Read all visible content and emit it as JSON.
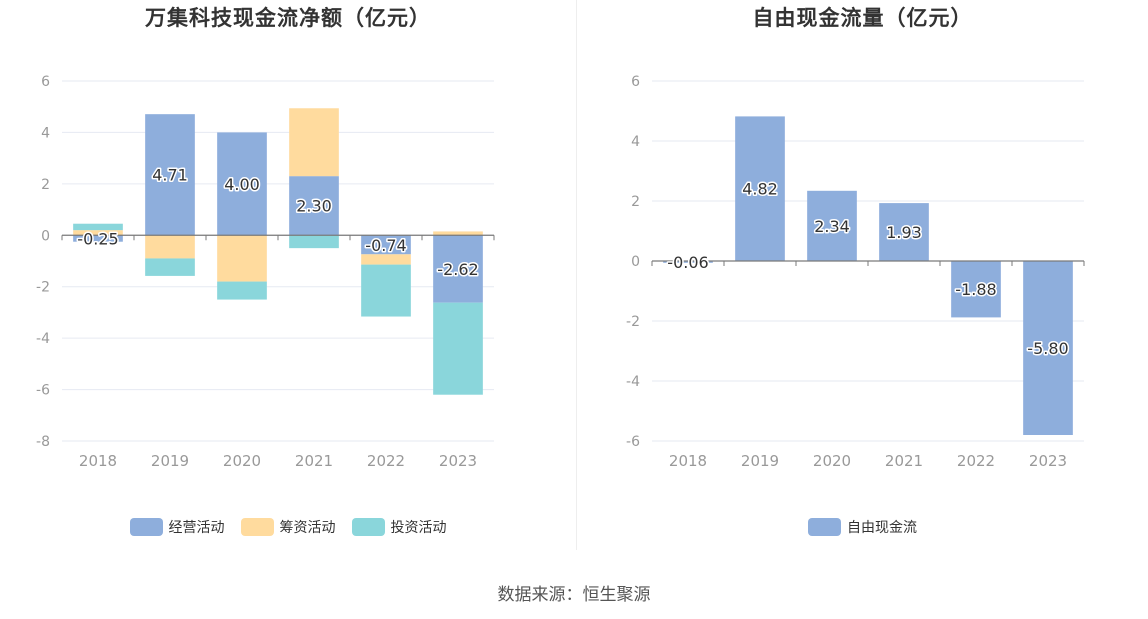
{
  "source_text": "数据来源：恒生聚源",
  "chart_data": [
    {
      "type": "bar",
      "stacked": true,
      "title": "万集科技现金流净额（亿元）",
      "categories": [
        "2018",
        "2019",
        "2020",
        "2021",
        "2022",
        "2023"
      ],
      "series": [
        {
          "name": "经营活动",
          "color": "#8eaedc",
          "values": [
            -0.25,
            4.71,
            4.0,
            2.3,
            -0.74,
            -2.62
          ]
        },
        {
          "name": "筹资活动",
          "color": "#ffdb9e",
          "values": [
            0.2,
            -0.9,
            -1.8,
            2.64,
            -0.4,
            0.15
          ]
        },
        {
          "name": "投资活动",
          "color": "#8ad6db",
          "values": [
            0.25,
            -0.68,
            -0.7,
            -0.5,
            -2.02,
            -3.58
          ]
        }
      ],
      "data_labels": [
        "-0.25",
        "4.71",
        "4.00",
        "2.30",
        "-0.74",
        "-2.62"
      ],
      "ylim": [
        -8,
        6
      ],
      "yticks": [
        6,
        4,
        2,
        0,
        -2,
        -4,
        -6,
        -8
      ],
      "grid": true,
      "legend": "bottom"
    },
    {
      "type": "bar",
      "title": "自由现金流量（亿元）",
      "categories": [
        "2018",
        "2019",
        "2020",
        "2021",
        "2022",
        "2023"
      ],
      "series": [
        {
          "name": "自由现金流",
          "color": "#8eaedc",
          "values": [
            -0.06,
            4.82,
            2.34,
            1.93,
            -1.88,
            -5.8
          ]
        }
      ],
      "data_labels": [
        "-0.06",
        "4.82",
        "2.34",
        "1.93",
        "-1.88",
        "-5.80"
      ],
      "ylim": [
        -6,
        6
      ],
      "yticks": [
        6,
        4,
        2,
        0,
        -2,
        -4,
        -6
      ],
      "grid": true,
      "legend": "bottom"
    }
  ]
}
